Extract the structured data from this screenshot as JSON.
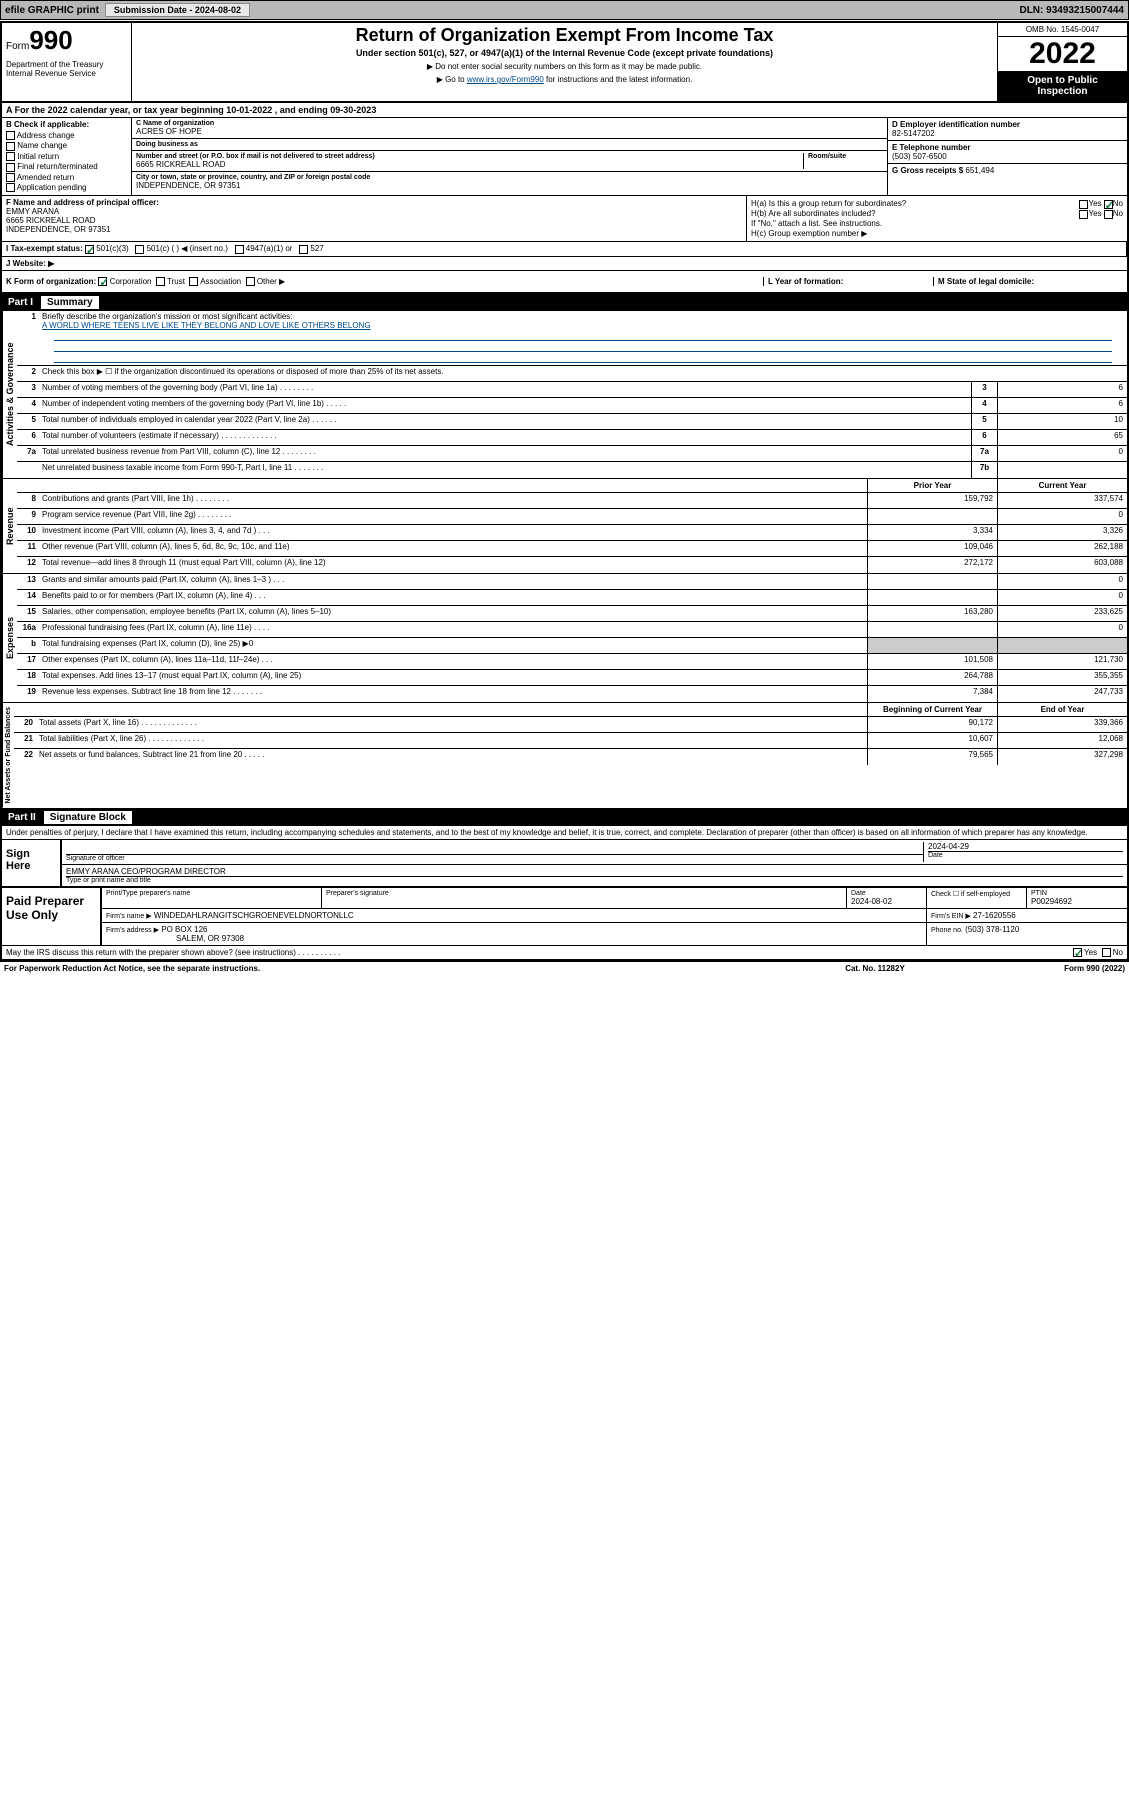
{
  "topbar": {
    "efile": "efile GRAPHIC print",
    "submission_label": "Submission Date - 2024-08-02",
    "dln": "DLN: 93493215007444"
  },
  "header": {
    "form_prefix": "Form",
    "form_number": "990",
    "dept": "Department of the Treasury Internal Revenue Service",
    "title": "Return of Organization Exempt From Income Tax",
    "subtitle": "Under section 501(c), 527, or 4947(a)(1) of the Internal Revenue Code (except private foundations)",
    "note1": "▶ Do not enter social security numbers on this form as it may be made public.",
    "note2_prefix": "▶ Go to ",
    "note2_link": "www.irs.gov/Form990",
    "note2_suffix": " for instructions and the latest information.",
    "omb": "OMB No. 1545-0047",
    "year": "2022",
    "open_public": "Open to Public Inspection"
  },
  "row_a": "A For the 2022 calendar year, or tax year beginning 10-01-2022   , and ending 09-30-2023",
  "section_b": {
    "label": "B Check if applicable:",
    "items": [
      "Address change",
      "Name change",
      "Initial return",
      "Final return/terminated",
      "Amended return",
      "Application pending"
    ]
  },
  "section_c": {
    "name_label": "C Name of organization",
    "name": "ACRES OF HOPE",
    "dba_label": "Doing business as",
    "dba": "",
    "addr_label": "Number and street (or P.O. box if mail is not delivered to street address)",
    "addr": "6665 RICKREALL ROAD",
    "room_label": "Room/suite",
    "city_label": "City or town, state or province, country, and ZIP or foreign postal code",
    "city": "INDEPENDENCE, OR  97351"
  },
  "section_de": {
    "d_label": "D Employer identification number",
    "d_val": "82-5147202",
    "e_label": "E Telephone number",
    "e_val": "(503) 507-6500",
    "g_label": "G Gross receipts $",
    "g_val": "651,494"
  },
  "section_f": {
    "label": "F Name and address of principal officer:",
    "name": "EMMY ARANA",
    "addr1": "6665 RICKREALL ROAD",
    "addr2": "INDEPENDENCE, OR  97351"
  },
  "section_h": {
    "ha": "H(a)  Is this a group return for subordinates?",
    "ha_yes": "Yes",
    "ha_no": "No",
    "hb": "H(b)  Are all subordinates included?",
    "hb_yes": "Yes",
    "hb_no": "No",
    "hb_note": "If \"No,\" attach a list. See instructions.",
    "hc": "H(c)  Group exemption number ▶"
  },
  "row_i": {
    "label": "I   Tax-exempt status:",
    "opts": [
      "501(c)(3)",
      "501(c) (  ) ◀ (insert no.)",
      "4947(a)(1) or",
      "527"
    ]
  },
  "row_j": "J   Website: ▶",
  "row_k": {
    "k": "K Form of organization:",
    "k_opts": [
      "Corporation",
      "Trust",
      "Association",
      "Other ▶"
    ],
    "l": "L Year of formation:",
    "m": "M State of legal domicile:"
  },
  "part1": {
    "header": "Part I",
    "title": "Summary"
  },
  "governance": {
    "label": "Activities & Governance",
    "r1": "Briefly describe the organization's mission or most significant activities:",
    "r1_val": "A WORLD WHERE TEENS LIVE LIKE THEY BELONG AND LOVE LIKE OTHERS BELONG",
    "r2": "Check this box ▶ ☐  if the organization discontinued its operations or disposed of more than 25% of its net assets.",
    "rows": [
      {
        "n": "3",
        "d": "Number of voting members of the governing body (Part VI, line 1a)   .    .    .    .    .    .    .    .",
        "ln": "3",
        "v": "6"
      },
      {
        "n": "4",
        "d": "Number of independent voting members of the governing body (Part VI, line 1b)   .    .    .    .    .",
        "ln": "4",
        "v": "6"
      },
      {
        "n": "5",
        "d": "Total number of individuals employed in calendar year 2022 (Part V, line 2a)   .    .    .    .    .    .",
        "ln": "5",
        "v": "10"
      },
      {
        "n": "6",
        "d": "Total number of volunteers (estimate if necessary)   .    .    .    .    .    .    .    .    .    .    .    .    .",
        "ln": "6",
        "v": "65"
      },
      {
        "n": "7a",
        "d": "Total unrelated business revenue from Part VIII, column (C), line 12   .    .    .    .    .    .    .    .",
        "ln": "7a",
        "v": "0"
      },
      {
        "n": "",
        "d": "Net unrelated business taxable income from Form 990-T, Part I, line 11   .    .    .    .    .    .    .",
        "ln": "7b",
        "v": ""
      }
    ]
  },
  "revenue": {
    "label": "Revenue",
    "cols": [
      "Prior Year",
      "Current Year"
    ],
    "rows": [
      {
        "n": "8",
        "d": "Contributions and grants (Part VIII, line 1h)   .    .    .    .    .    .    .    .",
        "p": "159,792",
        "c": "337,574"
      },
      {
        "n": "9",
        "d": "Program service revenue (Part VIII, line 2g)   .    .    .    .    .    .    .    .",
        "p": "",
        "c": "0"
      },
      {
        "n": "10",
        "d": "Investment income (Part VIII, column (A), lines 3, 4, and 7d )   .    .    .",
        "p": "3,334",
        "c": "3,326"
      },
      {
        "n": "11",
        "d": "Other revenue (Part VIII, column (A), lines 5, 6d, 8c, 9c, 10c, and 11e)",
        "p": "109,046",
        "c": "262,188"
      },
      {
        "n": "12",
        "d": "Total revenue—add lines 8 through 11 (must equal Part VIII, column (A), line 12)",
        "p": "272,172",
        "c": "603,088"
      }
    ]
  },
  "expenses": {
    "label": "Expenses",
    "rows": [
      {
        "n": "13",
        "d": "Grants and similar amounts paid (Part IX, column (A), lines 1–3 )   .    .    .",
        "p": "",
        "c": "0"
      },
      {
        "n": "14",
        "d": "Benefits paid to or for members (Part IX, column (A), line 4)   .    .    .",
        "p": "",
        "c": "0"
      },
      {
        "n": "15",
        "d": "Salaries, other compensation, employee benefits (Part IX, column (A), lines 5–10)",
        "p": "163,280",
        "c": "233,625"
      },
      {
        "n": "16a",
        "d": "Professional fundraising fees (Part IX, column (A), line 11e)   .    .    .    .",
        "p": "",
        "c": "0"
      },
      {
        "n": "b",
        "d": "Total fundraising expenses (Part IX, column (D), line 25) ▶0",
        "p": "—",
        "c": "—"
      },
      {
        "n": "17",
        "d": "Other expenses (Part IX, column (A), lines 11a–11d, 11f–24e)   .    .    .",
        "p": "101,508",
        "c": "121,730"
      },
      {
        "n": "18",
        "d": "Total expenses. Add lines 13–17 (must equal Part IX, column (A), line 25)",
        "p": "264,788",
        "c": "355,355"
      },
      {
        "n": "19",
        "d": "Revenue less expenses. Subtract line 18 from line 12   .    .    .    .    .    .    .",
        "p": "7,384",
        "c": "247,733"
      }
    ]
  },
  "netassets": {
    "label": "Net Assets or Fund Balances",
    "cols": [
      "Beginning of Current Year",
      "End of Year"
    ],
    "rows": [
      {
        "n": "20",
        "d": "Total assets (Part X, line 16)   .    .    .    .    .    .    .    .    .    .    .    .    .",
        "p": "90,172",
        "c": "339,366"
      },
      {
        "n": "21",
        "d": "Total liabilities (Part X, line 26)   .    .    .    .    .    .    .    .    .    .    .    .    .",
        "p": "10,607",
        "c": "12,068"
      },
      {
        "n": "22",
        "d": "Net assets or fund balances. Subtract line 21 from line 20   .    .    .    .    .",
        "p": "79,565",
        "c": "327,298"
      }
    ]
  },
  "part2": {
    "header": "Part II",
    "title": "Signature Block"
  },
  "sig": {
    "declaration": "Under penalties of perjury, I declare that I have examined this return, including accompanying schedules and statements, and to the best of my knowledge and belief, it is true, correct, and complete. Declaration of preparer (other than officer) is based on all information of which preparer has any knowledge.",
    "sign_here": "Sign Here",
    "sig_officer": "Signature of officer",
    "date": "2024-04-29",
    "date_label": "Date",
    "name_title": "EMMY ARANA  CEO/PROGRAM DIRECTOR",
    "name_label": "Type or print name and title"
  },
  "paid": {
    "label": "Paid Preparer Use Only",
    "print_name_label": "Print/Type preparer's name",
    "sig_label": "Preparer's signature",
    "date_label": "Date",
    "date": "2024-08-02",
    "check_label": "Check ☐ if self-employed",
    "ptin_label": "PTIN",
    "ptin": "P00294692",
    "firm_name_label": "Firm's name   ▶",
    "firm_name": "WINDEDAHLRANGITSCHGROENEVELDNORTONLLC",
    "firm_ein_label": "Firm's EIN ▶",
    "firm_ein": "27-1620556",
    "firm_addr_label": "Firm's address ▶",
    "firm_addr1": "PO BOX 126",
    "firm_addr2": "SALEM, OR  97308",
    "phone_label": "Phone no.",
    "phone": "(503) 378-1120"
  },
  "footer": {
    "discuss": "May the IRS discuss this return with the preparer shown above? (see instructions)   .    .    .    .    .    .    .    .    .    .",
    "yes": "Yes",
    "no": "No",
    "paperwork": "For Paperwork Reduction Act Notice, see the separate instructions.",
    "cat": "Cat. No. 11282Y",
    "form": "Form 990 (2022)"
  }
}
